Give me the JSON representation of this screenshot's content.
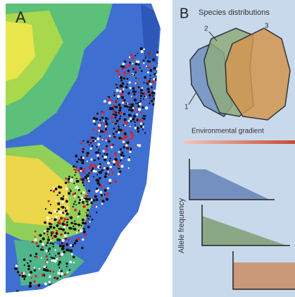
{
  "panel_a": {
    "label": "A"
  },
  "panel_b": {
    "label": "B",
    "title": "Species distributions",
    "species_labels": [
      "1",
      "2",
      "3"
    ],
    "gradient_label": "Environmental gradient",
    "y_axis_label": "Allele frequency"
  }
}
